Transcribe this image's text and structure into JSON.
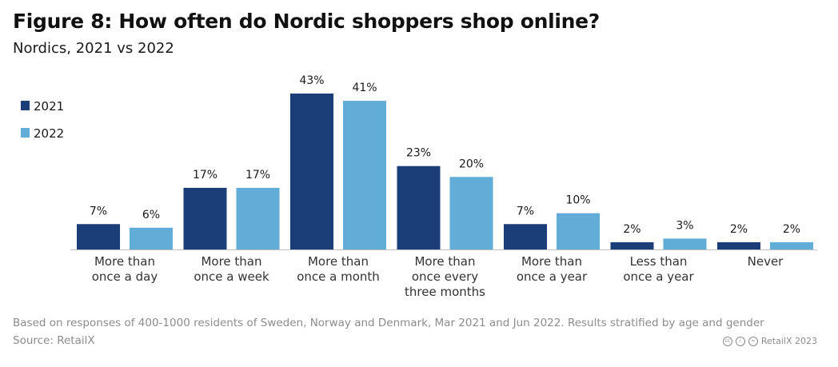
{
  "title": "Figure 8: How often do Nordic shoppers shop online?",
  "subtitle": "Nordics, 2021 vs 2022",
  "footnote": "Based on responses of 400-1000 residents of Sweden, Norway and Denmark, Mar 2021  and  Jun 2022. Results stratified by age and gender",
  "source": "Source: RetailX",
  "credit": {
    "text": "RetailX 2023",
    "icons": [
      "cc-icon",
      "by-icon",
      "nd-icon"
    ],
    "icon_glyphs": [
      "cc",
      "i",
      "="
    ]
  },
  "colors": {
    "2021": "#1b3d78",
    "2022": "#62acd8",
    "axis": "#bfbfbf"
  },
  "chart_data": {
    "type": "bar",
    "categories": [
      [
        "More than",
        "once a day"
      ],
      [
        "More than",
        "once a week"
      ],
      [
        "More than",
        "once a month"
      ],
      [
        "More than",
        "once every",
        "three months"
      ],
      [
        "More than",
        "once a year"
      ],
      [
        "Less than",
        "once a year"
      ],
      [
        "Never"
      ]
    ],
    "series": [
      {
        "name": "2021",
        "values": [
          7,
          17,
          43,
          23,
          7,
          2,
          2
        ],
        "labels": [
          "7%",
          "17%",
          "43%",
          "23%",
          "7%",
          "2%",
          "2%"
        ]
      },
      {
        "name": "2022",
        "values": [
          6,
          17,
          41,
          20,
          10,
          3,
          2
        ],
        "labels": [
          "6%",
          "17%",
          "41%",
          "20%",
          "10%",
          "3%",
          "2%"
        ]
      }
    ],
    "legend_position": "top-left",
    "ylim": [
      0,
      43
    ],
    "unit": "%"
  }
}
